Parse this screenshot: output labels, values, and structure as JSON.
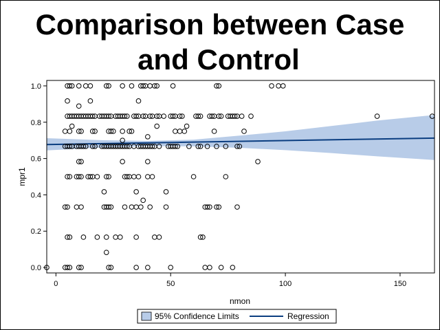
{
  "chart_data": {
    "type": "scatter",
    "title_lines": [
      "Comparison between Case",
      "and Control"
    ],
    "xlabel": "nmon",
    "ylabel": "mpr1",
    "xlim": [
      -4,
      165
    ],
    "ylim": [
      -0.03,
      1.03
    ],
    "x_ticks": [
      0,
      50,
      100,
      150
    ],
    "y_ticks": [
      0.0,
      0.2,
      0.4,
      0.6,
      0.8,
      1.0
    ],
    "x_tick_labels": [
      "0",
      "50",
      "100",
      "150"
    ],
    "y_tick_labels": [
      "0.0",
      "0.2",
      "0.4",
      "0.6",
      "0.8",
      "1.0"
    ],
    "grid": false,
    "legend_position": "bottom-center",
    "legend": {
      "band_label": "95% Confidence Limits",
      "line_label": "Regression"
    },
    "colors": {
      "band": "#b8cce8",
      "line": "#0a3d80",
      "points": "#000000"
    },
    "regression": {
      "intercept": 0.678,
      "slope": 0.00021
    },
    "confidence_band": {
      "x": [
        -4,
        20,
        40,
        60,
        80,
        100,
        120,
        140,
        165
      ],
      "lower": [
        0.645,
        0.66,
        0.668,
        0.667,
        0.659,
        0.646,
        0.63,
        0.612,
        0.592
      ],
      "upper": [
        0.712,
        0.701,
        0.697,
        0.704,
        0.726,
        0.75,
        0.779,
        0.809,
        0.84
      ]
    },
    "points": [
      {
        "x": -4,
        "y": 0.0
      },
      {
        "x": 4,
        "y": 0.0
      },
      {
        "x": 5,
        "y": 0.0
      },
      {
        "x": 6,
        "y": 0.0
      },
      {
        "x": 10,
        "y": 0.0
      },
      {
        "x": 11,
        "y": 0.0
      },
      {
        "x": 23,
        "y": 0.0
      },
      {
        "x": 24,
        "y": 0.0
      },
      {
        "x": 35,
        "y": 0.0
      },
      {
        "x": 40,
        "y": 0.0
      },
      {
        "x": 50,
        "y": 0.0
      },
      {
        "x": 65,
        "y": 0.0
      },
      {
        "x": 67,
        "y": 0.0
      },
      {
        "x": 72,
        "y": 0.0
      },
      {
        "x": 77,
        "y": 0.0
      },
      {
        "x": 22,
        "y": 0.083
      },
      {
        "x": 5,
        "y": 0.167
      },
      {
        "x": 6,
        "y": 0.167
      },
      {
        "x": 12,
        "y": 0.167
      },
      {
        "x": 18,
        "y": 0.167
      },
      {
        "x": 22,
        "y": 0.167
      },
      {
        "x": 26,
        "y": 0.167
      },
      {
        "x": 28,
        "y": 0.167
      },
      {
        "x": 35,
        "y": 0.167
      },
      {
        "x": 43,
        "y": 0.167
      },
      {
        "x": 45,
        "y": 0.167
      },
      {
        "x": 63,
        "y": 0.167
      },
      {
        "x": 64,
        "y": 0.167
      },
      {
        "x": 4,
        "y": 0.333
      },
      {
        "x": 5,
        "y": 0.333
      },
      {
        "x": 9,
        "y": 0.333
      },
      {
        "x": 11,
        "y": 0.333
      },
      {
        "x": 21,
        "y": 0.333
      },
      {
        "x": 22,
        "y": 0.333
      },
      {
        "x": 23,
        "y": 0.333
      },
      {
        "x": 24,
        "y": 0.333
      },
      {
        "x": 30,
        "y": 0.333
      },
      {
        "x": 33,
        "y": 0.333
      },
      {
        "x": 35,
        "y": 0.333
      },
      {
        "x": 37,
        "y": 0.333
      },
      {
        "x": 41,
        "y": 0.333
      },
      {
        "x": 48,
        "y": 0.333
      },
      {
        "x": 65,
        "y": 0.333
      },
      {
        "x": 66,
        "y": 0.333
      },
      {
        "x": 67,
        "y": 0.333
      },
      {
        "x": 70,
        "y": 0.333
      },
      {
        "x": 71,
        "y": 0.333
      },
      {
        "x": 79,
        "y": 0.333
      },
      {
        "x": 38,
        "y": 0.37
      },
      {
        "x": 35,
        "y": 0.417
      },
      {
        "x": 21,
        "y": 0.417
      },
      {
        "x": 48,
        "y": 0.417
      },
      {
        "x": 5,
        "y": 0.5
      },
      {
        "x": 6,
        "y": 0.5
      },
      {
        "x": 9,
        "y": 0.5
      },
      {
        "x": 10,
        "y": 0.5
      },
      {
        "x": 11,
        "y": 0.5
      },
      {
        "x": 14,
        "y": 0.5
      },
      {
        "x": 15,
        "y": 0.5
      },
      {
        "x": 16,
        "y": 0.5
      },
      {
        "x": 18,
        "y": 0.5
      },
      {
        "x": 22,
        "y": 0.5
      },
      {
        "x": 23,
        "y": 0.5
      },
      {
        "x": 30,
        "y": 0.5
      },
      {
        "x": 31,
        "y": 0.5
      },
      {
        "x": 32,
        "y": 0.5
      },
      {
        "x": 34,
        "y": 0.5
      },
      {
        "x": 36,
        "y": 0.5
      },
      {
        "x": 40,
        "y": 0.5
      },
      {
        "x": 42,
        "y": 0.5
      },
      {
        "x": 60,
        "y": 0.5
      },
      {
        "x": 74,
        "y": 0.5
      },
      {
        "x": 10,
        "y": 0.583
      },
      {
        "x": 11,
        "y": 0.583
      },
      {
        "x": 29,
        "y": 0.583
      },
      {
        "x": 40,
        "y": 0.583
      },
      {
        "x": 88,
        "y": 0.583
      },
      {
        "x": 4,
        "y": 0.667
      },
      {
        "x": 5,
        "y": 0.667
      },
      {
        "x": 6,
        "y": 0.667
      },
      {
        "x": 7,
        "y": 0.667
      },
      {
        "x": 9,
        "y": 0.667
      },
      {
        "x": 10,
        "y": 0.667
      },
      {
        "x": 11,
        "y": 0.667
      },
      {
        "x": 12,
        "y": 0.667
      },
      {
        "x": 13,
        "y": 0.667
      },
      {
        "x": 16,
        "y": 0.667
      },
      {
        "x": 17,
        "y": 0.667
      },
      {
        "x": 20,
        "y": 0.667
      },
      {
        "x": 21,
        "y": 0.667
      },
      {
        "x": 22,
        "y": 0.667
      },
      {
        "x": 23,
        "y": 0.667
      },
      {
        "x": 24,
        "y": 0.667
      },
      {
        "x": 25,
        "y": 0.667
      },
      {
        "x": 26,
        "y": 0.667
      },
      {
        "x": 27,
        "y": 0.667
      },
      {
        "x": 28,
        "y": 0.667
      },
      {
        "x": 29,
        "y": 0.667
      },
      {
        "x": 30,
        "y": 0.667
      },
      {
        "x": 31,
        "y": 0.667
      },
      {
        "x": 32,
        "y": 0.667
      },
      {
        "x": 34,
        "y": 0.667
      },
      {
        "x": 36,
        "y": 0.667
      },
      {
        "x": 37,
        "y": 0.667
      },
      {
        "x": 38,
        "y": 0.667
      },
      {
        "x": 39,
        "y": 0.667
      },
      {
        "x": 40,
        "y": 0.667
      },
      {
        "x": 41,
        "y": 0.667
      },
      {
        "x": 42,
        "y": 0.667
      },
      {
        "x": 43,
        "y": 0.667
      },
      {
        "x": 45,
        "y": 0.667
      },
      {
        "x": 49,
        "y": 0.667
      },
      {
        "x": 50,
        "y": 0.667
      },
      {
        "x": 51,
        "y": 0.667
      },
      {
        "x": 52,
        "y": 0.667
      },
      {
        "x": 53,
        "y": 0.667
      },
      {
        "x": 58,
        "y": 0.667
      },
      {
        "x": 62,
        "y": 0.667
      },
      {
        "x": 63,
        "y": 0.667
      },
      {
        "x": 66,
        "y": 0.667
      },
      {
        "x": 70,
        "y": 0.667
      },
      {
        "x": 74,
        "y": 0.667
      },
      {
        "x": 79,
        "y": 0.667
      },
      {
        "x": 80,
        "y": 0.667
      },
      {
        "x": 29,
        "y": 0.7
      },
      {
        "x": 40,
        "y": 0.72
      },
      {
        "x": 4,
        "y": 0.75
      },
      {
        "x": 6,
        "y": 0.75
      },
      {
        "x": 10,
        "y": 0.75
      },
      {
        "x": 11,
        "y": 0.75
      },
      {
        "x": 16,
        "y": 0.75
      },
      {
        "x": 17,
        "y": 0.75
      },
      {
        "x": 23,
        "y": 0.75
      },
      {
        "x": 24,
        "y": 0.75
      },
      {
        "x": 25,
        "y": 0.75
      },
      {
        "x": 29,
        "y": 0.75
      },
      {
        "x": 32,
        "y": 0.75
      },
      {
        "x": 33,
        "y": 0.75
      },
      {
        "x": 52,
        "y": 0.75
      },
      {
        "x": 54,
        "y": 0.75
      },
      {
        "x": 56,
        "y": 0.75
      },
      {
        "x": 69,
        "y": 0.75
      },
      {
        "x": 82,
        "y": 0.75
      },
      {
        "x": 7,
        "y": 0.778
      },
      {
        "x": 44,
        "y": 0.778
      },
      {
        "x": 57,
        "y": 0.778
      },
      {
        "x": 5,
        "y": 0.833
      },
      {
        "x": 6,
        "y": 0.833
      },
      {
        "x": 7,
        "y": 0.833
      },
      {
        "x": 8,
        "y": 0.833
      },
      {
        "x": 9,
        "y": 0.833
      },
      {
        "x": 10,
        "y": 0.833
      },
      {
        "x": 11,
        "y": 0.833
      },
      {
        "x": 12,
        "y": 0.833
      },
      {
        "x": 13,
        "y": 0.833
      },
      {
        "x": 14,
        "y": 0.833
      },
      {
        "x": 15,
        "y": 0.833
      },
      {
        "x": 16,
        "y": 0.833
      },
      {
        "x": 17,
        "y": 0.833
      },
      {
        "x": 19,
        "y": 0.833
      },
      {
        "x": 20,
        "y": 0.833
      },
      {
        "x": 21,
        "y": 0.833
      },
      {
        "x": 22,
        "y": 0.833
      },
      {
        "x": 23,
        "y": 0.833
      },
      {
        "x": 24,
        "y": 0.833
      },
      {
        "x": 26,
        "y": 0.833
      },
      {
        "x": 27,
        "y": 0.833
      },
      {
        "x": 28,
        "y": 0.833
      },
      {
        "x": 29,
        "y": 0.833
      },
      {
        "x": 30,
        "y": 0.833
      },
      {
        "x": 31,
        "y": 0.833
      },
      {
        "x": 34,
        "y": 0.833
      },
      {
        "x": 35,
        "y": 0.833
      },
      {
        "x": 36,
        "y": 0.833
      },
      {
        "x": 38,
        "y": 0.833
      },
      {
        "x": 39,
        "y": 0.833
      },
      {
        "x": 41,
        "y": 0.833
      },
      {
        "x": 42,
        "y": 0.833
      },
      {
        "x": 44,
        "y": 0.833
      },
      {
        "x": 45,
        "y": 0.833
      },
      {
        "x": 47,
        "y": 0.833
      },
      {
        "x": 50,
        "y": 0.833
      },
      {
        "x": 51,
        "y": 0.833
      },
      {
        "x": 52,
        "y": 0.833
      },
      {
        "x": 54,
        "y": 0.833
      },
      {
        "x": 55,
        "y": 0.833
      },
      {
        "x": 61,
        "y": 0.833
      },
      {
        "x": 62,
        "y": 0.833
      },
      {
        "x": 63,
        "y": 0.833
      },
      {
        "x": 67,
        "y": 0.833
      },
      {
        "x": 68,
        "y": 0.833
      },
      {
        "x": 69,
        "y": 0.833
      },
      {
        "x": 71,
        "y": 0.833
      },
      {
        "x": 72,
        "y": 0.833
      },
      {
        "x": 75,
        "y": 0.833
      },
      {
        "x": 76,
        "y": 0.833
      },
      {
        "x": 77,
        "y": 0.833
      },
      {
        "x": 78,
        "y": 0.833
      },
      {
        "x": 79,
        "y": 0.833
      },
      {
        "x": 81,
        "y": 0.833
      },
      {
        "x": 85,
        "y": 0.833
      },
      {
        "x": 140,
        "y": 0.833
      },
      {
        "x": 164,
        "y": 0.833
      },
      {
        "x": 10,
        "y": 0.889
      },
      {
        "x": 5,
        "y": 0.917
      },
      {
        "x": 15,
        "y": 0.917
      },
      {
        "x": 36,
        "y": 0.917
      },
      {
        "x": 5,
        "y": 1.0
      },
      {
        "x": 6,
        "y": 1.0
      },
      {
        "x": 7,
        "y": 1.0
      },
      {
        "x": 10,
        "y": 1.0
      },
      {
        "x": 13,
        "y": 1.0
      },
      {
        "x": 15,
        "y": 1.0
      },
      {
        "x": 22,
        "y": 1.0
      },
      {
        "x": 23,
        "y": 1.0
      },
      {
        "x": 29,
        "y": 1.0
      },
      {
        "x": 33,
        "y": 1.0
      },
      {
        "x": 37,
        "y": 1.0
      },
      {
        "x": 38,
        "y": 1.0
      },
      {
        "x": 39,
        "y": 1.0
      },
      {
        "x": 41,
        "y": 1.0
      },
      {
        "x": 43,
        "y": 1.0
      },
      {
        "x": 44,
        "y": 1.0
      },
      {
        "x": 51,
        "y": 1.0
      },
      {
        "x": 70,
        "y": 1.0
      },
      {
        "x": 71,
        "y": 1.0
      },
      {
        "x": 94,
        "y": 1.0
      },
      {
        "x": 97,
        "y": 1.0
      },
      {
        "x": 99,
        "y": 1.0
      }
    ]
  }
}
